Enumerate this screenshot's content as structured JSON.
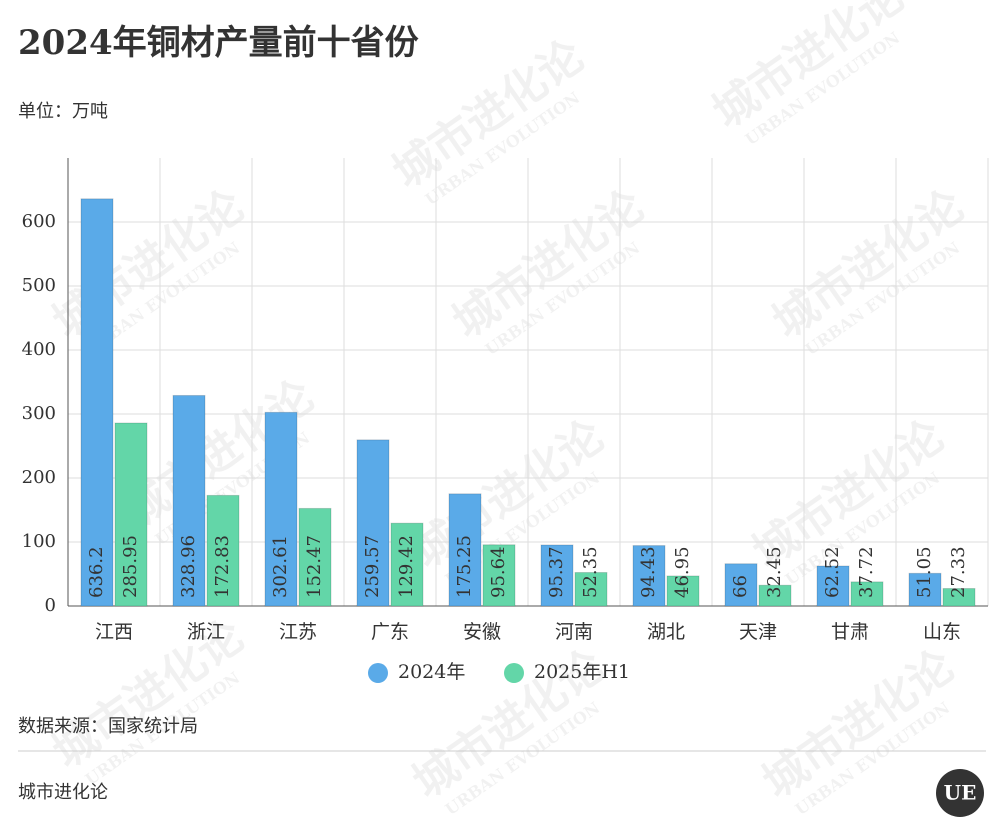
{
  "chart_data": {
    "type": "bar",
    "title": "2024年铜材产量前十省份",
    "subtitle": "单位：万吨",
    "categories": [
      "江西",
      "浙江",
      "江苏",
      "广东",
      "安徽",
      "河南",
      "湖北",
      "天津",
      "甘肃",
      "山东"
    ],
    "series": [
      {
        "name": "2024年",
        "color": "#5aaae8",
        "values": [
          636.2,
          328.96,
          302.61,
          259.57,
          175.25,
          95.37,
          94.43,
          66,
          62.52,
          51.05
        ]
      },
      {
        "name": "2025年H1",
        "color": "#63d6a8",
        "values": [
          285.95,
          172.83,
          152.47,
          129.42,
          95.64,
          52.35,
          46.95,
          32.45,
          37.72,
          27.33
        ]
      }
    ],
    "ylim": [
      0,
      700
    ],
    "yticks": [
      0,
      100,
      200,
      300,
      400,
      500,
      600
    ],
    "grid": true,
    "legend": "bottom",
    "source": "数据来源：国家统计局",
    "footer": "城市进化论",
    "logo": "UE",
    "watermark": "城市进化论",
    "watermark_sub": "URBAN EVOLUTION"
  }
}
